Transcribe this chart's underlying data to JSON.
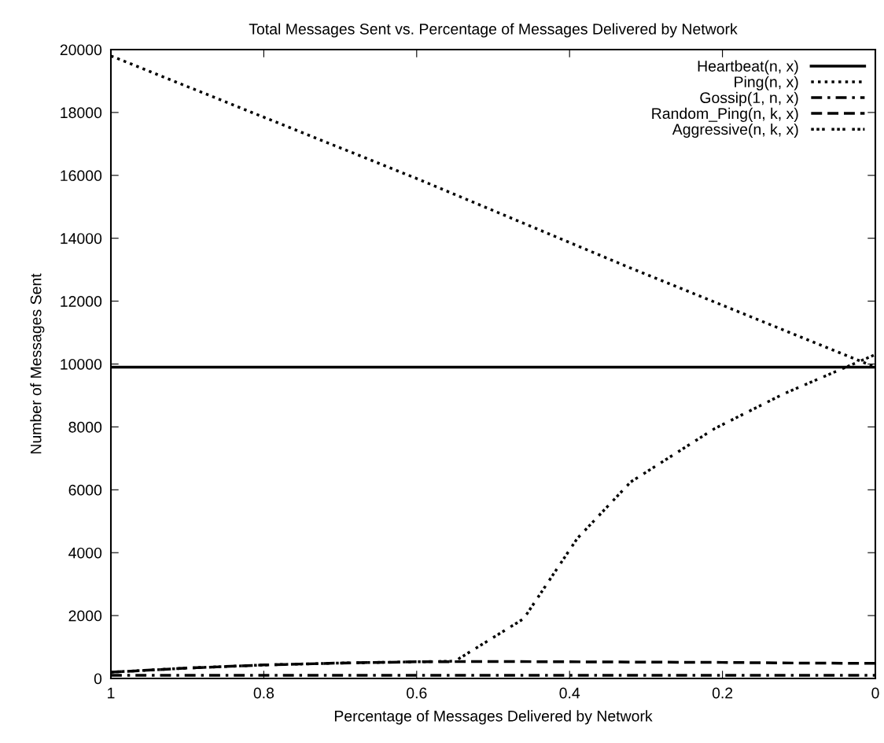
{
  "chart_data": {
    "type": "line",
    "title": "Total Messages Sent vs. Percentage of Messages Delivered by Network",
    "xlabel": "Percentage of Messages Delivered by Network",
    "ylabel": "Number of Messages Sent",
    "xlim": [
      1,
      0
    ],
    "xticks": [
      1,
      0.8,
      0.6,
      0.4,
      0.2,
      0
    ],
    "ylim": [
      0,
      20000
    ],
    "yticks": [
      0,
      2000,
      4000,
      6000,
      8000,
      10000,
      12000,
      14000,
      16000,
      18000,
      20000
    ],
    "grid": false,
    "legend": "top right",
    "marker": "none",
    "series": [
      {
        "name": "Heartbeat(n, x)",
        "color": "#000000",
        "line_style": "solid",
        "x": [
          1,
          0
        ],
        "values": [
          9900,
          9900
        ]
      },
      {
        "name": "Ping(n, x)",
        "color": "#000000",
        "line_style": "dotted",
        "x": [
          1,
          0.6,
          0.32,
          0
        ],
        "values": [
          19800,
          15900,
          13050,
          9900
        ]
      },
      {
        "name": "Gossip(1, n, x)",
        "color": "#000000",
        "line_style": "dashdot",
        "x": [
          1,
          0
        ],
        "values": [
          100,
          100
        ]
      },
      {
        "name": "Random_Ping(n, k, x)",
        "color": "#000000",
        "line_style": "dashed",
        "x": [
          1,
          0.9,
          0.8,
          0.7,
          0.6,
          0.5,
          0.4,
          0.3,
          0.2,
          0.1,
          0
        ],
        "values": [
          200,
          330,
          430,
          490,
          530,
          540,
          530,
          520,
          510,
          490,
          480
        ]
      },
      {
        "name": "Aggressive(n, k, x)",
        "color": "#000000",
        "line_style": "dotted",
        "x": [
          1,
          0.9,
          0.8,
          0.7,
          0.6,
          0.55,
          0.46,
          0.39,
          0.32,
          0.21,
          0.12,
          0
        ],
        "values": [
          200,
          330,
          430,
          490,
          530,
          550,
          1900,
          4450,
          6250,
          7950,
          9050,
          10300
        ]
      }
    ]
  }
}
